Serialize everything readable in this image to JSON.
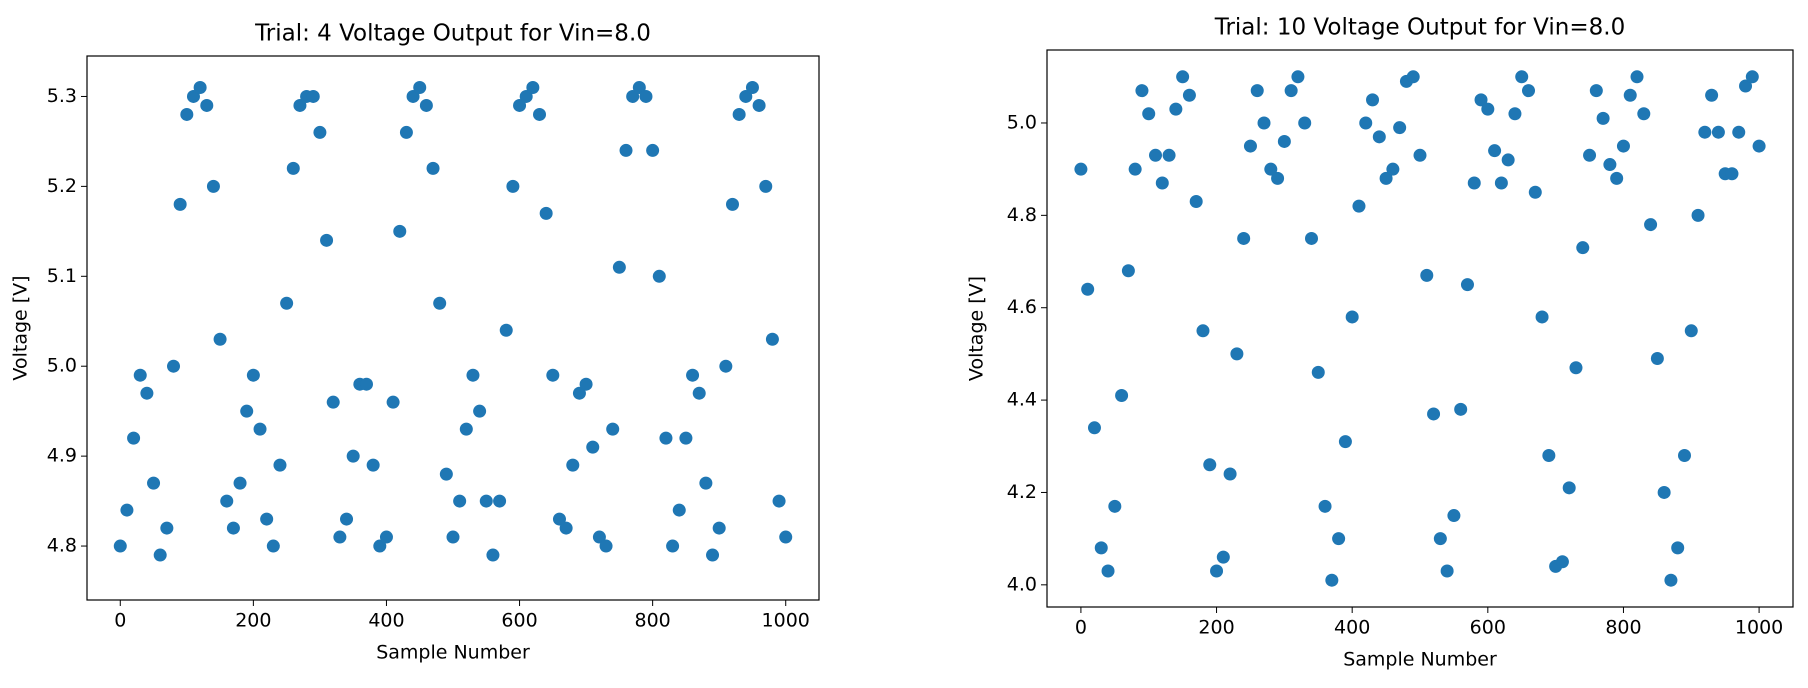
{
  "chart_data": [
    {
      "type": "scatter",
      "title": "Trial: 4 Voltage Output for Vin=8.0",
      "xlabel": "Sample Number",
      "ylabel": "Voltage [V]",
      "color": "#1f77b4",
      "xlim": [
        -50,
        1050
      ],
      "ylim": [
        4.74,
        5.345
      ],
      "xticks": [
        0,
        200,
        400,
        600,
        800,
        1000
      ],
      "yticks": [
        4.8,
        4.9,
        {
          "value": 5,
          "label": "5.0"
        },
        5.1,
        5.2,
        5.3
      ],
      "x": [
        0,
        10,
        20,
        30,
        40,
        50,
        60,
        70,
        80,
        90,
        100,
        110,
        120,
        130,
        140,
        150,
        160,
        170,
        180,
        190,
        200,
        210,
        220,
        230,
        240,
        250,
        260,
        270,
        280,
        290,
        300,
        310,
        320,
        330,
        340,
        350,
        360,
        370,
        380,
        390,
        400,
        410,
        420,
        430,
        440,
        450,
        460,
        470,
        480,
        490,
        500,
        510,
        520,
        530,
        540,
        550,
        560,
        570,
        580,
        590,
        600,
        610,
        620,
        630,
        640,
        650,
        660,
        670,
        680,
        690,
        700,
        710,
        720,
        730,
        740,
        750,
        760,
        770,
        780,
        790,
        800,
        810,
        820,
        830,
        840,
        850,
        860,
        870,
        880,
        890,
        900,
        910,
        920,
        930,
        940,
        950,
        960,
        970,
        980,
        990,
        1000
      ],
      "values": [
        4.8,
        4.84,
        4.92,
        4.99,
        4.97,
        4.87,
        4.79,
        4.82,
        5.0,
        5.18,
        5.28,
        5.3,
        5.31,
        5.29,
        5.2,
        5.03,
        4.85,
        4.82,
        4.87,
        4.95,
        4.99,
        4.93,
        4.83,
        4.8,
        4.89,
        5.07,
        5.22,
        5.29,
        5.3,
        5.3,
        5.26,
        5.14,
        4.96,
        4.81,
        4.83,
        4.9,
        4.98,
        4.98,
        4.89,
        4.8,
        4.81,
        4.96,
        5.15,
        5.26,
        5.3,
        5.31,
        5.29,
        5.22,
        5.07,
        4.88,
        4.81,
        4.85,
        4.93,
        4.99,
        4.95,
        4.85,
        4.79,
        4.85,
        5.04,
        5.2,
        5.29,
        5.3,
        5.31,
        5.28,
        5.17,
        4.99,
        4.83,
        4.82,
        4.89,
        4.97,
        4.98,
        4.91,
        4.81,
        4.8,
        4.93,
        5.11,
        5.24,
        5.3,
        5.31,
        5.3,
        5.24,
        5.1,
        4.92,
        4.8,
        4.84,
        4.92,
        4.99,
        4.97,
        4.87,
        4.79,
        4.82,
        5.0,
        5.18,
        5.28,
        5.3,
        5.31,
        5.29,
        5.2,
        5.03,
        4.85,
        4.81
      ]
    },
    {
      "type": "scatter",
      "title": "Trial: 10 Voltage Output for Vin=8.0",
      "xlabel": "Sample Number",
      "ylabel": "Voltage [V]",
      "color": "#1f77b4",
      "xlim": [
        -50,
        1050
      ],
      "ylim": [
        3.952,
        5.158
      ],
      "xticks": [
        0,
        200,
        400,
        600,
        800,
        1000
      ],
      "yticks": [
        {
          "value": 4,
          "label": "4.0"
        },
        4.2,
        4.4,
        4.6,
        4.8,
        {
          "value": 5,
          "label": "5.0"
        }
      ],
      "x": [
        0,
        10,
        20,
        30,
        40,
        50,
        60,
        70,
        80,
        90,
        100,
        110,
        120,
        130,
        140,
        150,
        160,
        170,
        180,
        190,
        200,
        210,
        220,
        230,
        240,
        250,
        260,
        270,
        280,
        290,
        300,
        310,
        320,
        330,
        340,
        350,
        360,
        370,
        380,
        390,
        400,
        410,
        420,
        430,
        440,
        450,
        460,
        470,
        480,
        490,
        500,
        510,
        520,
        530,
        540,
        550,
        560,
        570,
        580,
        590,
        600,
        610,
        620,
        630,
        640,
        650,
        660,
        670,
        680,
        690,
        700,
        710,
        720,
        730,
        740,
        750,
        760,
        770,
        780,
        790,
        800,
        810,
        820,
        830,
        840,
        850,
        860,
        870,
        880,
        890,
        900,
        910,
        920,
        930,
        940,
        950,
        960,
        970,
        980,
        990,
        1000
      ],
      "values": [
        4.9,
        4.64,
        4.34,
        4.08,
        4.03,
        4.17,
        4.41,
        4.68,
        4.9,
        5.07,
        5.02,
        4.93,
        4.87,
        4.93,
        5.03,
        5.1,
        5.06,
        4.83,
        4.55,
        4.26,
        4.03,
        4.06,
        4.24,
        4.5,
        4.75,
        4.95,
        5.07,
        5.0,
        4.9,
        4.88,
        4.96,
        5.07,
        5.1,
        5.0,
        4.75,
        4.46,
        4.17,
        4.01,
        4.1,
        4.31,
        4.58,
        4.82,
        5.0,
        5.05,
        4.97,
        4.88,
        4.9,
        4.99,
        5.09,
        5.1,
        4.93,
        4.67,
        4.37,
        4.1,
        4.03,
        4.15,
        4.38,
        4.65,
        4.87,
        5.05,
        5.03,
        4.94,
        4.87,
        4.92,
        5.02,
        5.1,
        5.07,
        4.85,
        4.58,
        4.28,
        4.04,
        4.05,
        4.21,
        4.47,
        4.73,
        4.93,
        5.07,
        5.01,
        4.91,
        4.88,
        4.95,
        5.06,
        5.1,
        5.02,
        4.78,
        4.49,
        4.2,
        4.01,
        4.08,
        4.28,
        4.55,
        4.8,
        4.98,
        5.06,
        4.98,
        4.89,
        4.89,
        4.98,
        5.08,
        5.1,
        4.95
      ]
    }
  ]
}
